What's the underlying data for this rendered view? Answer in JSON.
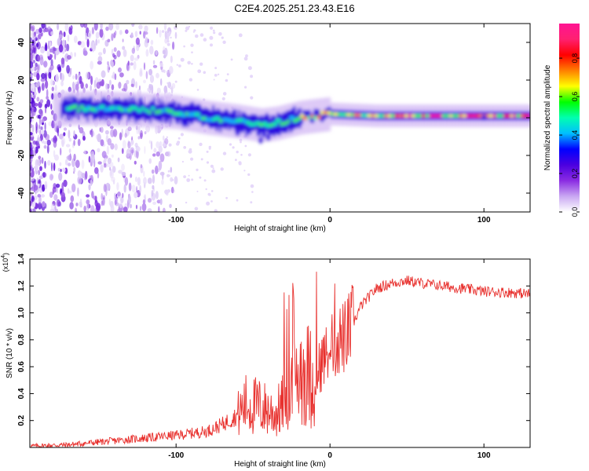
{
  "title": "C2E4.2025.251.23.43.E16",
  "chart_data": [
    {
      "type": "heatmap",
      "name": "spectrogram",
      "xlabel": "Height of straight line (km)",
      "ylabel": "Frequency (Hz)",
      "xlim": [
        -195,
        130
      ],
      "ylim": [
        -50,
        50
      ],
      "xticks": [
        -100,
        0,
        100
      ],
      "xtick_labels": [
        "-100",
        "0",
        "100"
      ],
      "yticks": [
        -40,
        -20,
        0,
        20,
        40
      ],
      "ytick_labels": [
        "-40",
        "-20",
        "0",
        "20",
        "40"
      ],
      "ridge": [
        {
          "x": -195,
          "y": 3
        },
        {
          "x": -170,
          "y": 5
        },
        {
          "x": -150,
          "y": 5
        },
        {
          "x": -120,
          "y": 4
        },
        {
          "x": -100,
          "y": 3
        },
        {
          "x": -80,
          "y": 0
        },
        {
          "x": -60,
          "y": -2
        },
        {
          "x": -45,
          "y": -4
        },
        {
          "x": -35,
          "y": -3
        },
        {
          "x": -20,
          "y": 0
        },
        {
          "x": 0,
          "y": 2
        },
        {
          "x": 30,
          "y": 1
        },
        {
          "x": 60,
          "y": 1
        },
        {
          "x": 100,
          "y": 1
        },
        {
          "x": 130,
          "y": 1
        }
      ]
    },
    {
      "type": "line",
      "name": "snr",
      "xlabel": "Height of straight line (km)",
      "ylabel": "SNR (10 * v/v)",
      "multiplier_label": "(x10",
      "multiplier_exp": "4",
      "multiplier_close": ")",
      "xlim": [
        -195,
        130
      ],
      "ylim": [
        0,
        1.4
      ],
      "xticks": [
        -100,
        0,
        100
      ],
      "xtick_labels": [
        "-100",
        "0",
        "100"
      ],
      "yticks": [
        0.2,
        0.4,
        0.6,
        0.8,
        1.0,
        1.2,
        1.4
      ],
      "ytick_labels": [
        "0.2",
        "0.4",
        "0.6",
        "0.8",
        "1.0",
        "1.2",
        "1.4"
      ],
      "color": "#e8312e",
      "envelope": [
        {
          "x": -195,
          "y": 0.01
        },
        {
          "x": -170,
          "y": 0.02
        },
        {
          "x": -150,
          "y": 0.04
        },
        {
          "x": -120,
          "y": 0.07
        },
        {
          "x": -100,
          "y": 0.09
        },
        {
          "x": -80,
          "y": 0.12
        },
        {
          "x": -70,
          "y": 0.17
        },
        {
          "x": -60,
          "y": 0.24
        },
        {
          "x": -55,
          "y": 0.32
        },
        {
          "x": -45,
          "y": 0.3
        },
        {
          "x": -35,
          "y": 0.25
        },
        {
          "x": -25,
          "y": 0.4
        },
        {
          "x": -20,
          "y": 0.6
        },
        {
          "x": -15,
          "y": 0.55
        },
        {
          "x": -10,
          "y": 0.5
        },
        {
          "x": -5,
          "y": 0.65
        },
        {
          "x": 0,
          "y": 0.72
        },
        {
          "x": 5,
          "y": 0.8
        },
        {
          "x": 10,
          "y": 0.82
        },
        {
          "x": 15,
          "y": 0.92
        },
        {
          "x": 20,
          "y": 1.05
        },
        {
          "x": 30,
          "y": 1.18
        },
        {
          "x": 40,
          "y": 1.22
        },
        {
          "x": 50,
          "y": 1.24
        },
        {
          "x": 60,
          "y": 1.22
        },
        {
          "x": 80,
          "y": 1.19
        },
        {
          "x": 100,
          "y": 1.16
        },
        {
          "x": 120,
          "y": 1.15
        },
        {
          "x": 130,
          "y": 1.14
        }
      ]
    }
  ],
  "colorbar": {
    "label": "Normalized spectral amplitude",
    "ticks": [
      0.0,
      0.2,
      0.4,
      0.6,
      0.8
    ],
    "tick_labels": [
      "0.0",
      "0.2",
      "0.4",
      "0.6",
      "0.8"
    ],
    "colors": [
      "#ffffff",
      "#c9a7f2",
      "#8a2be2",
      "#4b00e0",
      "#0000ff",
      "#00bfff",
      "#00ffb0",
      "#00ff00",
      "#ffff00",
      "#ff8000",
      "#ff0000",
      "#ff2070",
      "#ff1493"
    ]
  }
}
